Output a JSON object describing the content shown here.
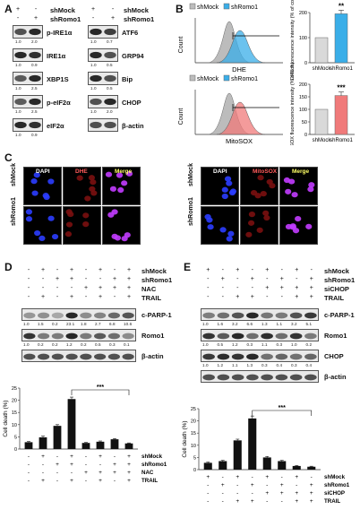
{
  "panel_labels": {
    "a": "A",
    "b": "B",
    "c": "C",
    "d": "D",
    "e": "E"
  },
  "panel_a": {
    "conditions": [
      "shMock",
      "shRomo1"
    ],
    "cond_signs": [
      [
        "+",
        "-"
      ],
      [
        "-",
        "+"
      ]
    ],
    "left_blots": [
      {
        "label": "p-IRE1α",
        "quant": [
          "1.0",
          "2.0"
        ]
      },
      {
        "label": "IRE1α",
        "quant": [
          "1.0",
          "0.9"
        ]
      },
      {
        "label": "XBP1S",
        "quant": [
          "1.0",
          "2.5"
        ]
      },
      {
        "label": "p-eIF2α",
        "quant": [
          "1.0",
          "2.5"
        ]
      },
      {
        "label": "eIF2α",
        "quant": [
          "1.0",
          "0.9"
        ]
      }
    ],
    "right_blots": [
      {
        "label": "ATF6",
        "quant": [
          "1.0",
          "0.7"
        ]
      },
      {
        "label": "GRP94",
        "quant": [
          "1.0",
          "0.5"
        ]
      },
      {
        "label": "Bip",
        "quant": [
          "1.0",
          "0.5"
        ]
      },
      {
        "label": "CHOP",
        "quant": [
          "1.0",
          "2.0"
        ]
      },
      {
        "label": "β-actin",
        "quant": []
      }
    ]
  },
  "panel_b": {
    "legend": [
      "shMock",
      "shRomo1"
    ],
    "count_label": "Count",
    "flow": [
      {
        "xlabel": "DHE",
        "series_color": "#3aaee8"
      },
      {
        "xlabel": "MitoSOX",
        "series_color": "#f07a7a"
      }
    ],
    "bars": [
      {
        "ylabel": "DHE fluorescence intensity (% of con)",
        "ticks": [
          "0",
          "100",
          "200"
        ],
        "categories": [
          "shMock",
          "shRomo1"
        ],
        "values": [
          100,
          195
        ],
        "colors": [
          "#d9d9d9",
          "#3aaee8"
        ],
        "sig": "**"
      },
      {
        "ylabel": "MitoSOX fluorescence intensity (% of con)",
        "ticks": [
          "0",
          "50",
          "100",
          "150",
          "200"
        ],
        "categories": [
          "shMock",
          "shRomo1"
        ],
        "values": [
          100,
          155
        ],
        "colors": [
          "#d9d9d9",
          "#f07a7a"
        ],
        "sig": "***"
      }
    ]
  },
  "panel_c": {
    "left_titles": [
      "DAPI",
      "DHE",
      "Merge"
    ],
    "right_titles": [
      "DAPI",
      "MitoSOX",
      "Merge"
    ],
    "rows": [
      "shMock",
      "shRomo1"
    ]
  },
  "panel_d": {
    "conditions": [
      {
        "name": "shMock",
        "signs": [
          "-",
          "+",
          "-",
          "+",
          "-",
          "+",
          "-",
          "+"
        ]
      },
      {
        "name": "shRomo1",
        "signs": [
          "-",
          "-",
          "+",
          "+",
          "-",
          "-",
          "+",
          "+"
        ]
      },
      {
        "name": "NAC",
        "signs": [
          "-",
          "-",
          "-",
          "-",
          "+",
          "+",
          "+",
          "+"
        ]
      },
      {
        "name": "TRAIL",
        "signs": [
          "-",
          "+",
          "-",
          "+",
          "-",
          "+",
          "-",
          "+"
        ]
      }
    ],
    "blots": [
      {
        "label": "c-PARP-1",
        "quant": [
          "1.0",
          "1.5",
          "0.2",
          "23.1",
          "1.8",
          "2.7",
          "6.8",
          "10.6"
        ]
      },
      {
        "label": "Romo1",
        "quant": [
          "1.0",
          "0.2",
          "0.2",
          "1.2",
          "0.2",
          "0.5",
          "0.3",
          "0.1"
        ]
      },
      {
        "label": "β-actin",
        "quant": []
      }
    ],
    "chart": {
      "ylabel": "Cell death (%)",
      "ticks": [
        "0",
        "5",
        "10",
        "15",
        "20",
        "25"
      ],
      "sig": "***"
    },
    "chart_data": {
      "type": "bar",
      "values": [
        2.8,
        4.8,
        9.5,
        20.5,
        2.5,
        3.0,
        4.0,
        2.3
      ],
      "errors": [
        0.3,
        0.5,
        0.5,
        0.8,
        0.2,
        0.3,
        0.3,
        0.2
      ],
      "ylim": [
        0,
        25
      ]
    }
  },
  "panel_e": {
    "conditions": [
      {
        "name": "shMock",
        "signs": [
          "+",
          "-",
          "+",
          "-",
          "+",
          "-",
          "+",
          "-"
        ]
      },
      {
        "name": "shRomo1",
        "signs": [
          "-",
          "+",
          "-",
          "+",
          "-",
          "+",
          "-",
          "+"
        ]
      },
      {
        "name": "siCHOP",
        "signs": [
          "-",
          "-",
          "-",
          "-",
          "+",
          "+",
          "+",
          "+"
        ]
      },
      {
        "name": "TRAIL",
        "signs": [
          "-",
          "-",
          "+",
          "+",
          "-",
          "-",
          "+",
          "+"
        ]
      }
    ],
    "blots": [
      {
        "label": "c-PARP-1",
        "quant": [
          "1.0",
          "1.6",
          "3.2",
          "6.6",
          "1.3",
          "1.1",
          "3.2",
          "5.1"
        ]
      },
      {
        "label": "Romo1",
        "quant": [
          "1.0",
          "0.5",
          "1.2",
          "0.3",
          "1.1",
          "0.3",
          "1.0",
          "0.2"
        ]
      },
      {
        "label": "CHOP",
        "quant": [
          "1.0",
          "1.2",
          "1.1",
          "1.3",
          "0.3",
          "0.4",
          "0.3",
          "0.4"
        ]
      },
      {
        "label": "β-actin",
        "quant": []
      }
    ],
    "chart": {
      "ylabel": "Cell death (%)",
      "ticks": [
        "0",
        "5",
        "10",
        "15",
        "20",
        "25"
      ],
      "sig": "***"
    },
    "chart_data": {
      "type": "bar",
      "values": [
        2.8,
        3.5,
        12.0,
        21.0,
        5.0,
        3.5,
        1.5,
        1.2
      ],
      "errors": [
        0.3,
        0.3,
        0.5,
        1.0,
        0.4,
        0.3,
        0.2,
        0.2
      ],
      "ylim": [
        0,
        25
      ]
    }
  }
}
